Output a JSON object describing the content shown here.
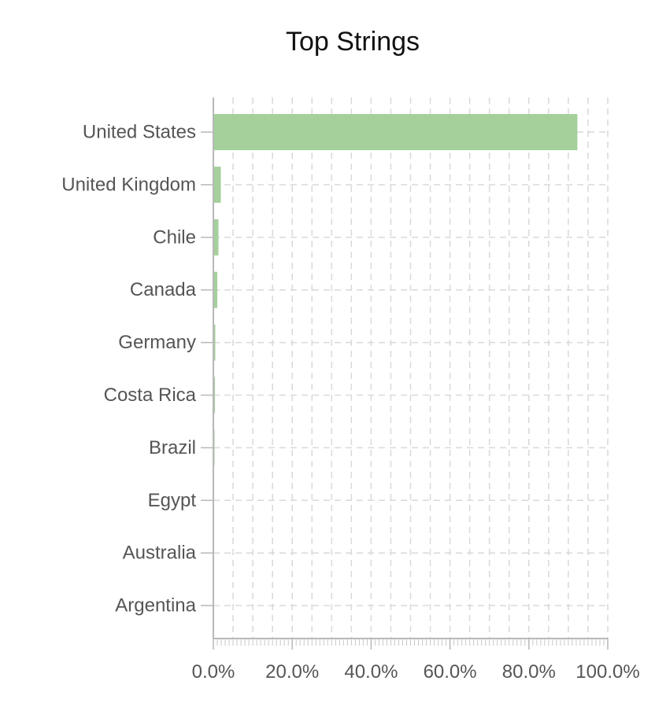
{
  "chart_data": {
    "type": "bar",
    "orientation": "horizontal",
    "title": "Top Strings",
    "categories": [
      "United States",
      "United Kingdom",
      "Chile",
      "Canada",
      "Germany",
      "Costa Rica",
      "Brazil",
      "Egypt",
      "Australia",
      "Argentina"
    ],
    "values": [
      92.3,
      1.9,
      1.3,
      1.0,
      0.5,
      0.4,
      0.3,
      0.1,
      0.1,
      0.1
    ],
    "x_ticks": [
      "0.0%",
      "20.0%",
      "40.0%",
      "60.0%",
      "80.0%",
      "100.0%"
    ],
    "xlim": [
      0,
      100
    ],
    "grid": true,
    "bar_color": "#a5d09c"
  }
}
